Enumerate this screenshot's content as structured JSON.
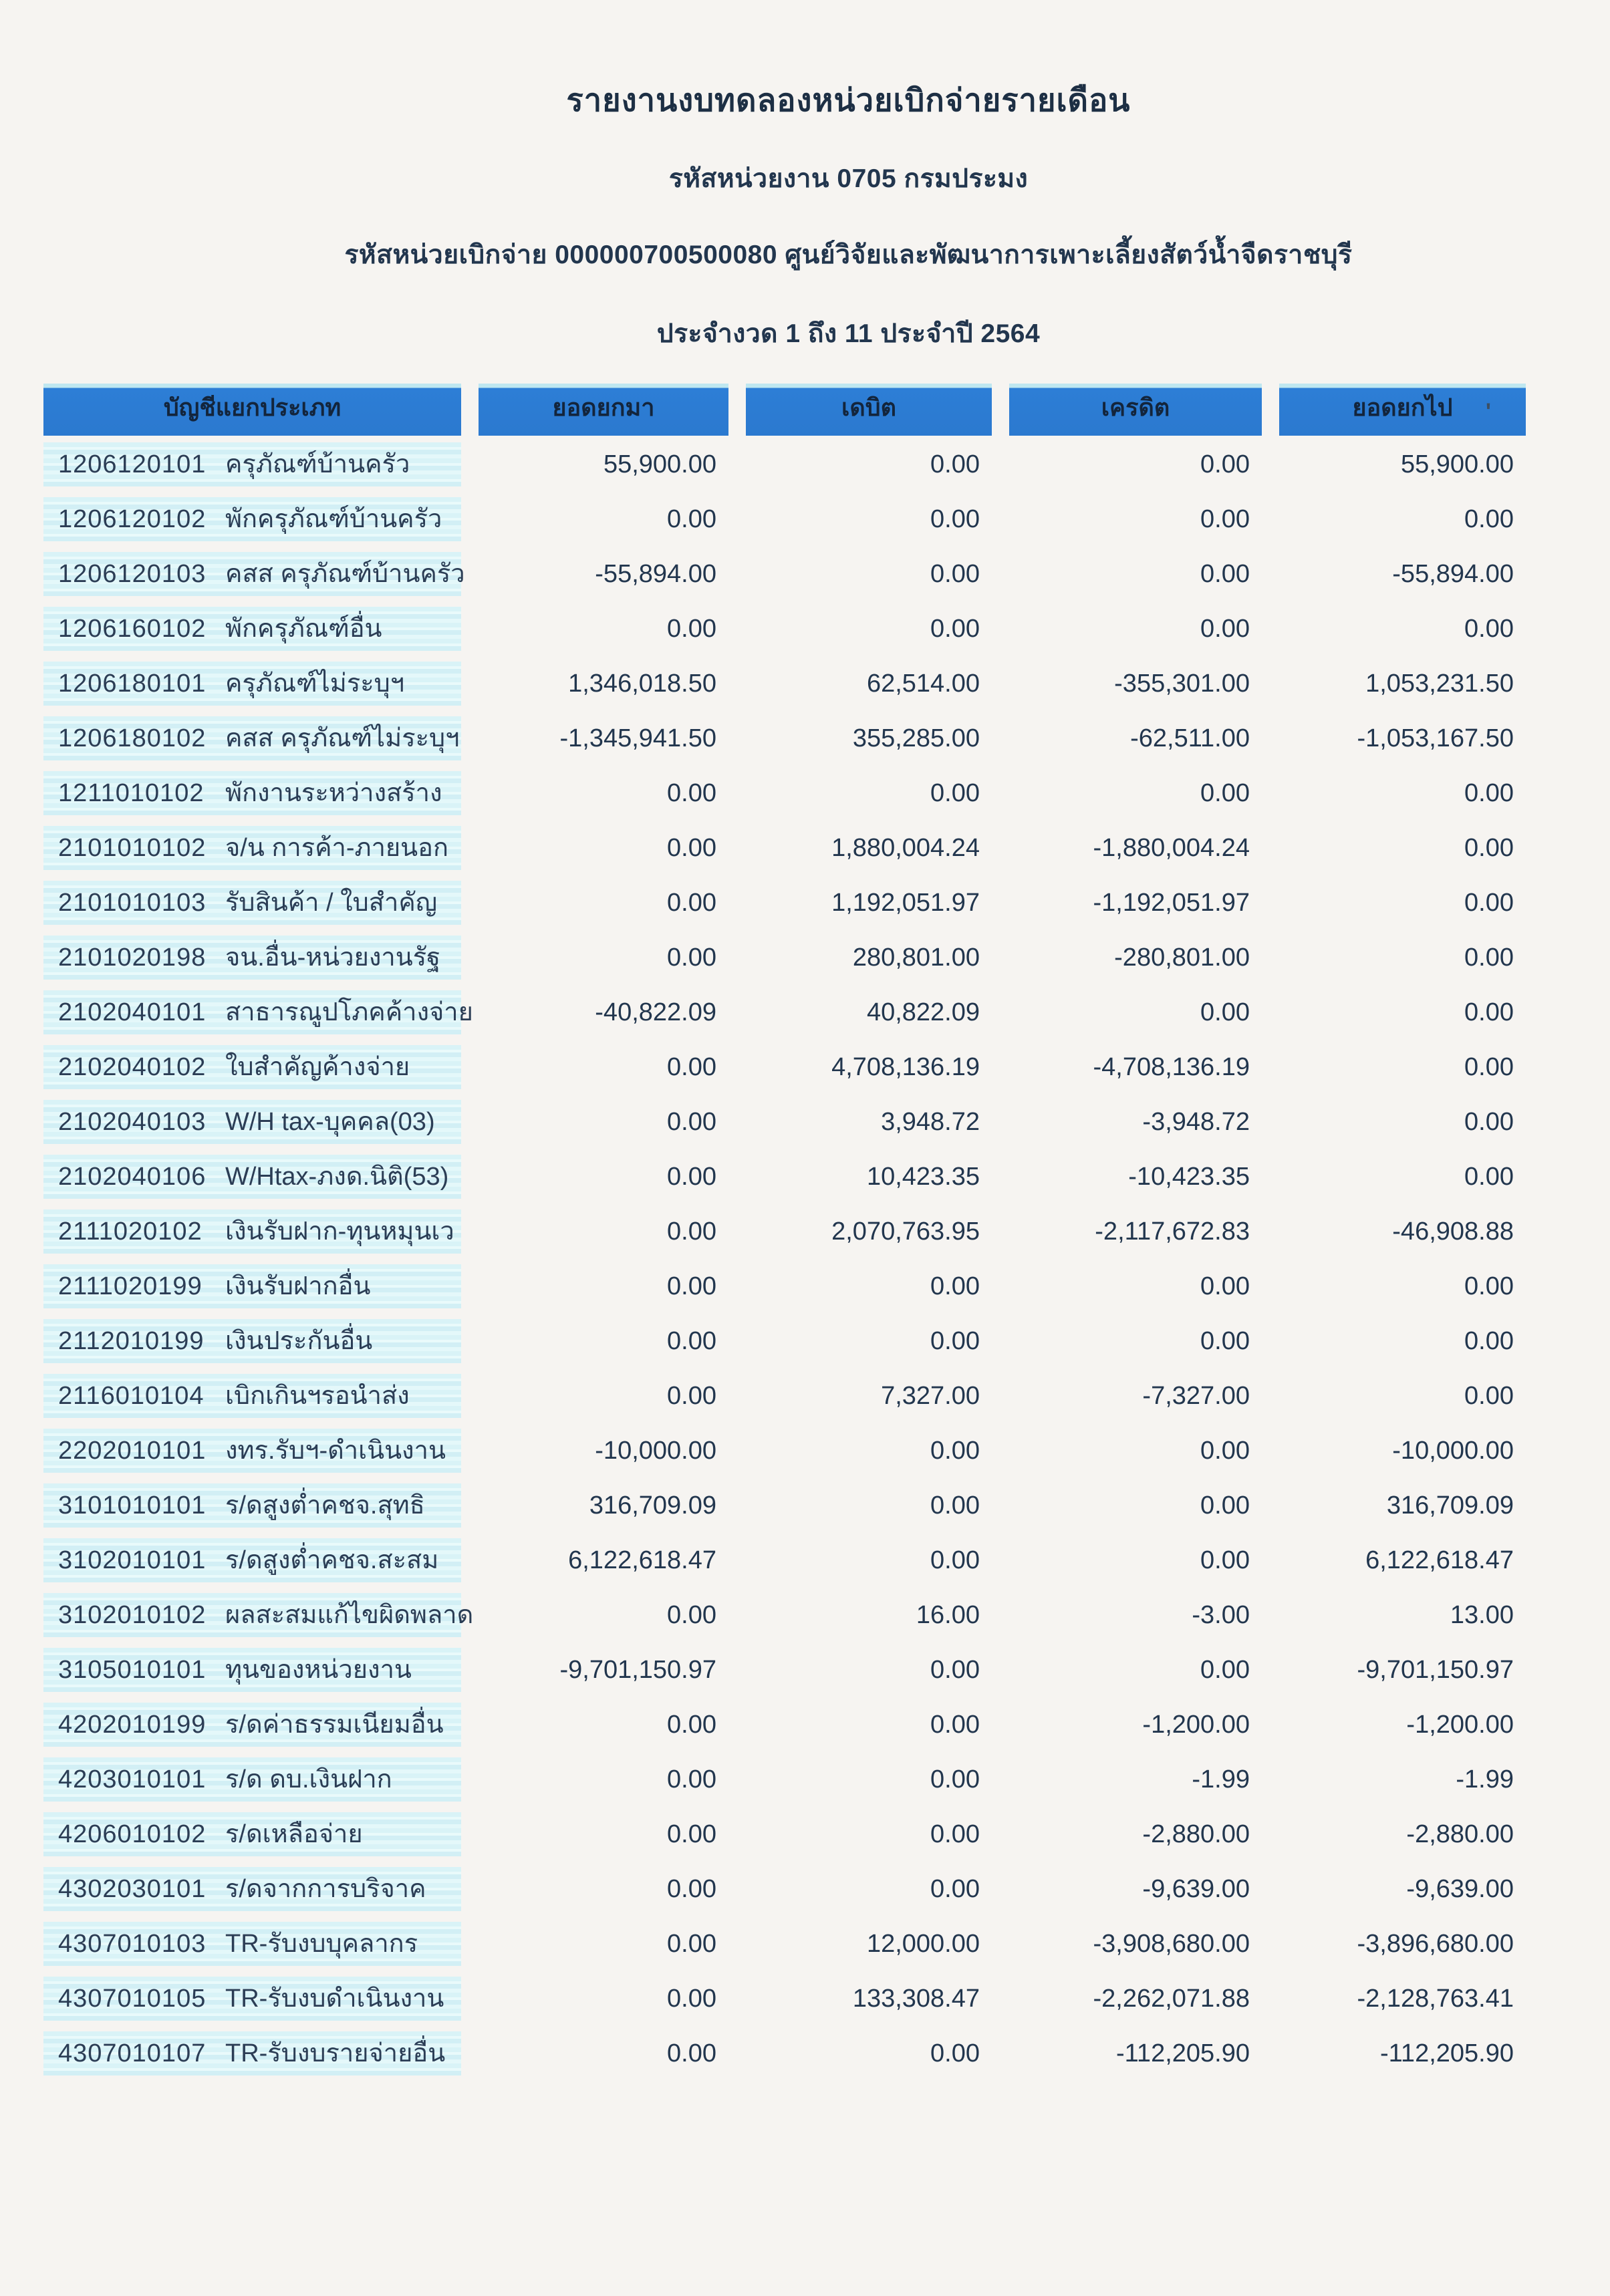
{
  "document": {
    "title": "รายงานงบทดลองหน่วยเบิกจ่ายรายเดือน",
    "agency_line": "รหัสหน่วยงาน 0705 กรมประมง",
    "unit_line": "รหัสหน่วยเบิกจ่าย 000000700500080 ศูนย์วิจัยและพัฒนาการเพาะเลี้ยงสัตว์น้ำจืดราชบุรี",
    "period_line": "ประจำงวด 1 ถึง 11 ประจำปี 2564"
  },
  "colors": {
    "header_bg": "#2b79cf",
    "header_top_strip": "#bfe7f0",
    "row_stripe_bg": "#d9f3f7",
    "text": "#22364e"
  },
  "table": {
    "headers": [
      "บัญชีแยกประเภท",
      "ยอดยกมา",
      "เดบิต",
      "เครดิต",
      "ยอดยกไป"
    ],
    "header_artifact": "'",
    "rows": [
      {
        "code": "1206120101",
        "name": "ครุภัณฑ์บ้านครัว",
        "broughtForward": "55,900.00",
        "debit": "0.00",
        "credit": "0.00",
        "carriedForward": "55,900.00"
      },
      {
        "code": "1206120102",
        "name": "พักครุภัณฑ์บ้านครัว",
        "broughtForward": "0.00",
        "debit": "0.00",
        "credit": "0.00",
        "carriedForward": "0.00"
      },
      {
        "code": "1206120103",
        "name": "คสส ครุภัณฑ์บ้านครัว",
        "broughtForward": "-55,894.00",
        "debit": "0.00",
        "credit": "0.00",
        "carriedForward": "-55,894.00"
      },
      {
        "code": "1206160102",
        "name": "พักครุภัณฑ์อื่น",
        "broughtForward": "0.00",
        "debit": "0.00",
        "credit": "0.00",
        "carriedForward": "0.00"
      },
      {
        "code": "1206180101",
        "name": "ครุภัณฑ์ไม่ระบุฯ",
        "broughtForward": "1,346,018.50",
        "debit": "62,514.00",
        "credit": "-355,301.00",
        "carriedForward": "1,053,231.50"
      },
      {
        "code": "1206180102",
        "name": "คสส ครุภัณฑ์ไม่ระบุฯ",
        "broughtForward": "-1,345,941.50",
        "debit": "355,285.00",
        "credit": "-62,511.00",
        "carriedForward": "-1,053,167.50"
      },
      {
        "code": "1211010102",
        "name": "พักงานระหว่างสร้าง",
        "broughtForward": "0.00",
        "debit": "0.00",
        "credit": "0.00",
        "carriedForward": "0.00"
      },
      {
        "code": "2101010102",
        "name": "จ/น การค้า-ภายนอก",
        "broughtForward": "0.00",
        "debit": "1,880,004.24",
        "credit": "-1,880,004.24",
        "carriedForward": "0.00"
      },
      {
        "code": "2101010103",
        "name": "รับสินค้า / ใบสำคัญ",
        "broughtForward": "0.00",
        "debit": "1,192,051.97",
        "credit": "-1,192,051.97",
        "carriedForward": "0.00"
      },
      {
        "code": "2101020198",
        "name": "จน.อื่น-หน่วยงานรัฐ",
        "broughtForward": "0.00",
        "debit": "280,801.00",
        "credit": "-280,801.00",
        "carriedForward": "0.00"
      },
      {
        "code": "2102040101",
        "name": "สาธารณูปโภคค้างจ่าย",
        "broughtForward": "-40,822.09",
        "debit": "40,822.09",
        "credit": "0.00",
        "carriedForward": "0.00"
      },
      {
        "code": "2102040102",
        "name": "ใบสำคัญค้างจ่าย",
        "broughtForward": "0.00",
        "debit": "4,708,136.19",
        "credit": "-4,708,136.19",
        "carriedForward": "0.00"
      },
      {
        "code": "2102040103",
        "name": "W/H tax-บุคคล(03)",
        "broughtForward": "0.00",
        "debit": "3,948.72",
        "credit": "-3,948.72",
        "carriedForward": "0.00"
      },
      {
        "code": "2102040106",
        "name": "W/Htax-ภงด.นิติ(53)",
        "broughtForward": "0.00",
        "debit": "10,423.35",
        "credit": "-10,423.35",
        "carriedForward": "0.00"
      },
      {
        "code": "2111020102",
        "name": "เงินรับฝาก-ทุนหมุนเว",
        "broughtForward": "0.00",
        "debit": "2,070,763.95",
        "credit": "-2,117,672.83",
        "carriedForward": "-46,908.88"
      },
      {
        "code": "2111020199",
        "name": "เงินรับฝากอื่น",
        "broughtForward": "0.00",
        "debit": "0.00",
        "credit": "0.00",
        "carriedForward": "0.00"
      },
      {
        "code": "2112010199",
        "name": "เงินประกันอื่น",
        "broughtForward": "0.00",
        "debit": "0.00",
        "credit": "0.00",
        "carriedForward": "0.00"
      },
      {
        "code": "2116010104",
        "name": "เบิกเกินฯรอนำส่ง",
        "broughtForward": "0.00",
        "debit": "7,327.00",
        "credit": "-7,327.00",
        "carriedForward": "0.00"
      },
      {
        "code": "2202010101",
        "name": "งทร.รับฯ-ดำเนินงาน",
        "broughtForward": "-10,000.00",
        "debit": "0.00",
        "credit": "0.00",
        "carriedForward": "-10,000.00"
      },
      {
        "code": "3101010101",
        "name": "ร/ดสูงต่ำคชจ.สุทธิ",
        "broughtForward": "316,709.09",
        "debit": "0.00",
        "credit": "0.00",
        "carriedForward": "316,709.09"
      },
      {
        "code": "3102010101",
        "name": "ร/ดสูงต่ำคชจ.สะสม",
        "broughtForward": "6,122,618.47",
        "debit": "0.00",
        "credit": "0.00",
        "carriedForward": "6,122,618.47"
      },
      {
        "code": "3102010102",
        "name": "ผลสะสมแก้ไขผิดพลาด",
        "broughtForward": "0.00",
        "debit": "16.00",
        "credit": "-3.00",
        "carriedForward": "13.00"
      },
      {
        "code": "3105010101",
        "name": "ทุนของหน่วยงาน",
        "broughtForward": "-9,701,150.97",
        "debit": "0.00",
        "credit": "0.00",
        "carriedForward": "-9,701,150.97"
      },
      {
        "code": "4202010199",
        "name": "ร/ดค่าธรรมเนียมอื่น",
        "broughtForward": "0.00",
        "debit": "0.00",
        "credit": "-1,200.00",
        "carriedForward": "-1,200.00"
      },
      {
        "code": "4203010101",
        "name": "ร/ด ดบ.เงินฝาก",
        "broughtForward": "0.00",
        "debit": "0.00",
        "credit": "-1.99",
        "carriedForward": "-1.99"
      },
      {
        "code": "4206010102",
        "name": "ร/ดเหลือจ่าย",
        "broughtForward": "0.00",
        "debit": "0.00",
        "credit": "-2,880.00",
        "carriedForward": "-2,880.00"
      },
      {
        "code": "4302030101",
        "name": "ร/ดจากการบริจาค",
        "broughtForward": "0.00",
        "debit": "0.00",
        "credit": "-9,639.00",
        "carriedForward": "-9,639.00"
      },
      {
        "code": "4307010103",
        "name": "TR-รับงบบุคลากร",
        "broughtForward": "0.00",
        "debit": "12,000.00",
        "credit": "-3,908,680.00",
        "carriedForward": "-3,896,680.00"
      },
      {
        "code": "4307010105",
        "name": "TR-รับงบดำเนินงาน",
        "broughtForward": "0.00",
        "debit": "133,308.47",
        "credit": "-2,262,071.88",
        "carriedForward": "-2,128,763.41"
      },
      {
        "code": "4307010107",
        "name": "TR-รับงบรายจ่ายอื่น",
        "broughtForward": "0.00",
        "debit": "0.00",
        "credit": "-112,205.90",
        "carriedForward": "-112,205.90"
      }
    ]
  }
}
